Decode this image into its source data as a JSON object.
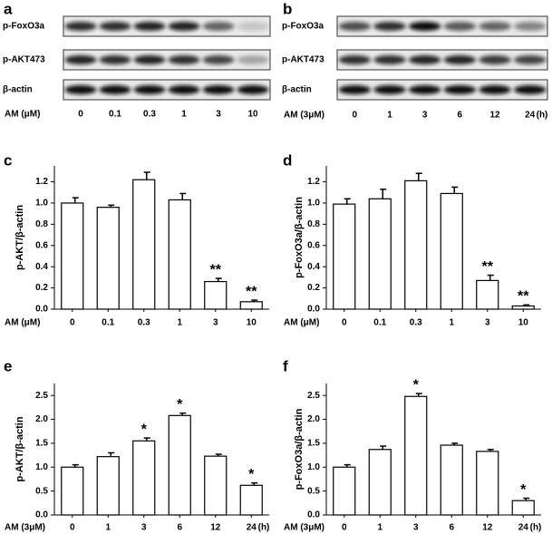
{
  "blots": [
    {
      "panel": "a",
      "rows": [
        "p-FoxO3a",
        "p-AKT473",
        "β-actin"
      ],
      "x_label": "AM (μM)",
      "lanes": [
        "0",
        "0.1",
        "0.3",
        "1",
        "3",
        "10"
      ]
    },
    {
      "panel": "b",
      "rows": [
        "p-FoxO3a",
        "p-AKT473",
        "β-actin"
      ],
      "x_label": "AM (3μM)",
      "lanes": [
        "0",
        "1",
        "3",
        "6",
        "12",
        "24"
      ],
      "x_unit": "(h)"
    }
  ],
  "chart_data": [
    {
      "type": "bar",
      "panel": "c",
      "y_label": "p-AKT/β-actin",
      "x_label": "AM (μM)",
      "categories": [
        "0",
        "0.1",
        "0.3",
        "1",
        "3",
        "10"
      ],
      "values": [
        1.0,
        0.96,
        1.22,
        1.03,
        0.26,
        0.07
      ],
      "errors": [
        0.05,
        0.02,
        0.07,
        0.06,
        0.03,
        0.015
      ],
      "annotations": [
        null,
        null,
        null,
        null,
        "**",
        "**"
      ],
      "color": "#ffffff",
      "ylim": [
        0,
        1.35
      ],
      "yticks": [
        {
          "value": 0,
          "label": "0.0"
        },
        {
          "value": 0.2,
          "label": "0.2"
        },
        {
          "value": 0.4,
          "label": "0.4"
        },
        {
          "value": 0.6,
          "label": "0.6"
        },
        {
          "value": 0.8,
          "label": "0.8"
        },
        {
          "value": 1,
          "label": "1.0"
        },
        {
          "value": 1.2,
          "label": "1.2"
        }
      ]
    },
    {
      "type": "bar",
      "panel": "d",
      "y_label": "p-FoxO3a/β-actin",
      "x_label": "AM (μM)",
      "categories": [
        "0",
        "0.1",
        "0.3",
        "1",
        "3",
        "10"
      ],
      "values": [
        0.99,
        1.04,
        1.21,
        1.09,
        0.27,
        0.03
      ],
      "errors": [
        0.05,
        0.09,
        0.07,
        0.06,
        0.05,
        0.01
      ],
      "annotations": [
        null,
        null,
        null,
        null,
        "**",
        "**"
      ],
      "color": "#ffffff",
      "ylim": [
        0,
        1.35
      ],
      "yticks": [
        {
          "value": 0,
          "label": "0.0"
        },
        {
          "value": 0.2,
          "label": "0.2"
        },
        {
          "value": 0.4,
          "label": "0.4"
        },
        {
          "value": 0.6,
          "label": "0.6"
        },
        {
          "value": 0.8,
          "label": "0.8"
        },
        {
          "value": 1,
          "label": "1.0"
        },
        {
          "value": 1.2,
          "label": "1.2"
        }
      ]
    },
    {
      "type": "bar",
      "panel": "e",
      "y_label": "p-AKT/β-actin",
      "x_label": "AM (3μM)",
      "x_unit": "(h)",
      "categories": [
        "0",
        "1",
        "3",
        "6",
        "12",
        "24"
      ],
      "values": [
        1.0,
        1.22,
        1.55,
        2.08,
        1.23,
        0.62
      ],
      "errors": [
        0.05,
        0.08,
        0.06,
        0.05,
        0.04,
        0.05
      ],
      "annotations": [
        null,
        null,
        "*",
        "*",
        null,
        "*"
      ],
      "color": "#ffffff",
      "ylim": [
        0,
        2.75
      ],
      "yticks": [
        {
          "value": 0,
          "label": "0.0"
        },
        {
          "value": 0.5,
          "label": "0.5"
        },
        {
          "value": 1,
          "label": "1.0"
        },
        {
          "value": 1.5,
          "label": "1.5"
        },
        {
          "value": 2,
          "label": "2.0"
        },
        {
          "value": 2.5,
          "label": "2.5"
        }
      ]
    },
    {
      "type": "bar",
      "panel": "f",
      "y_label": "p-FoxO3a/β-actin",
      "x_label": "AM (3μM)",
      "x_unit": "(h)",
      "categories": [
        "0",
        "1",
        "3",
        "6",
        "12",
        "24"
      ],
      "values": [
        1.0,
        1.37,
        2.48,
        1.46,
        1.33,
        0.3
      ],
      "errors": [
        0.05,
        0.07,
        0.06,
        0.04,
        0.04,
        0.05
      ],
      "annotations": [
        null,
        null,
        "*",
        null,
        null,
        "*"
      ],
      "color": "#ffffff",
      "ylim": [
        0,
        2.75
      ],
      "yticks": [
        {
          "value": 0,
          "label": "0.0"
        },
        {
          "value": 0.5,
          "label": "0.5"
        },
        {
          "value": 1,
          "label": "1.0"
        },
        {
          "value": 1.5,
          "label": "1.5"
        },
        {
          "value": 2,
          "label": "2.0"
        },
        {
          "value": 2.5,
          "label": "2.5"
        }
      ]
    }
  ]
}
